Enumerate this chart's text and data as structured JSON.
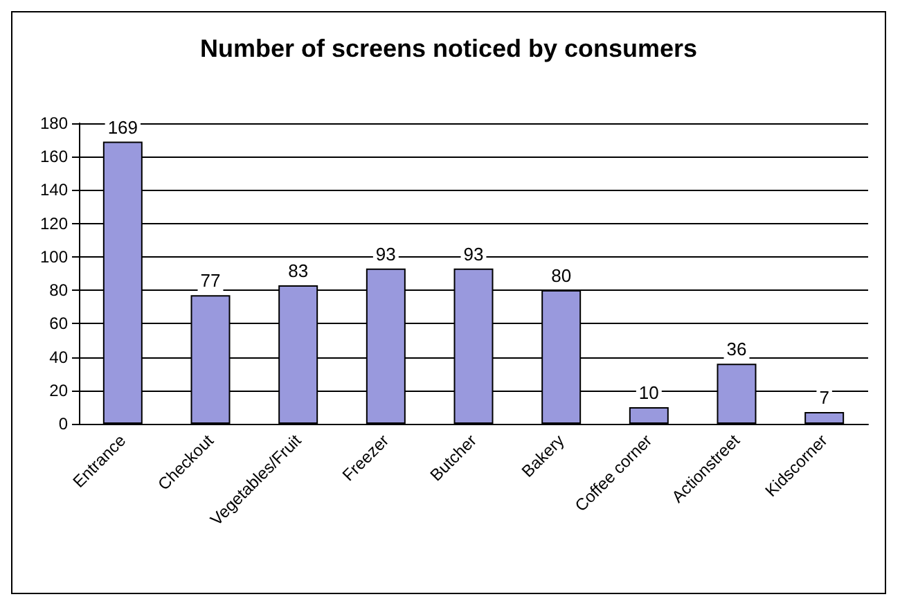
{
  "chart_data": {
    "type": "bar",
    "title": "Number of screens noticed by consumers",
    "categories": [
      "Entrance",
      "Checkout",
      "Vegetables/Fruit",
      "Freezer",
      "Butcher",
      "Bakery",
      "Coffee corner",
      "Actionstreet",
      "Kidscorner"
    ],
    "values": [
      169,
      77,
      83,
      93,
      93,
      80,
      10,
      36,
      7
    ],
    "color": "#9999dd",
    "data_labels": true,
    "ylim": [
      0,
      180
    ],
    "yticks": [
      0,
      20,
      40,
      60,
      80,
      100,
      120,
      140,
      160,
      180
    ],
    "grid": "y"
  }
}
